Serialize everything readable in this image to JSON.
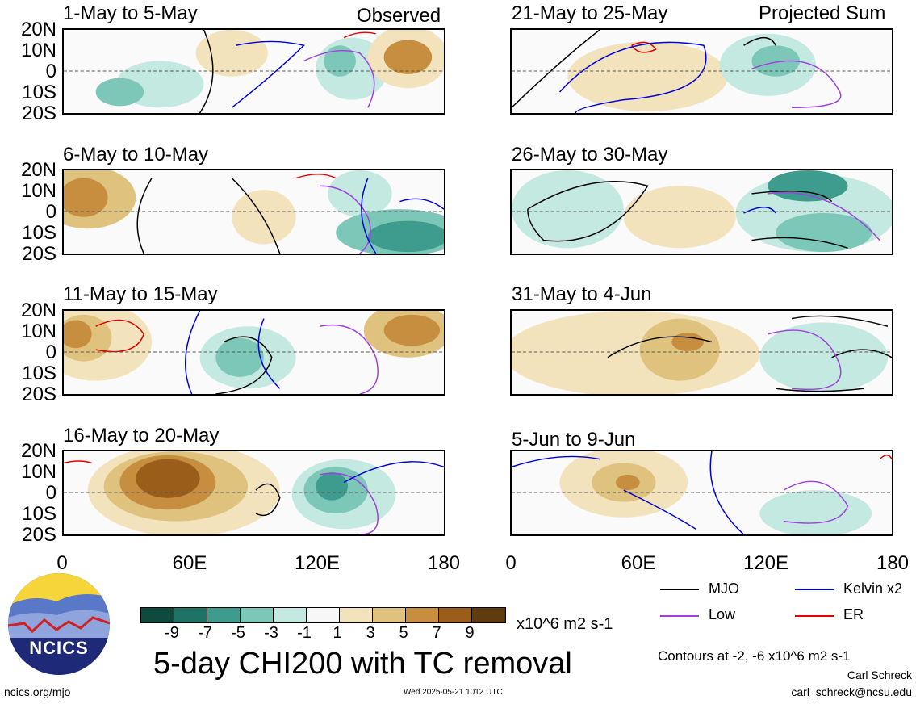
{
  "map": {
    "left_header": "Observed",
    "right_header": "Projected Sum",
    "lat_labels": [
      "20N",
      "10N",
      "0",
      "10S",
      "20S"
    ],
    "lon_labels": [
      "0",
      "60E",
      "120E",
      "180"
    ],
    "panels_left": [
      "1-May to 5-May",
      "6-May to 10-May",
      "11-May to 15-May",
      "16-May to 20-May"
    ],
    "panels_right": [
      "21-May to 25-May",
      "26-May to 30-May",
      "31-May to 4-Jun",
      "5-Jun to 9-Jun"
    ]
  },
  "colorbar": {
    "colors": [
      "#0e4a3e",
      "#1d7466",
      "#3d9c8e",
      "#7cc7b8",
      "#c4e9e0",
      "#f7f7f7",
      "#f3e3bd",
      "#dfc27d",
      "#c78e3f",
      "#9a5e1a",
      "#5e3c0e"
    ],
    "ticks": [
      "-9",
      "-7",
      "-5",
      "-3",
      "-1",
      "1",
      "3",
      "5",
      "7",
      "9"
    ],
    "units": "x10^6 m2 s-1"
  },
  "legend": [
    {
      "label": "MJO",
      "color": "#000000"
    },
    {
      "label": "Kelvin x2",
      "color": "#0000dd"
    },
    {
      "label": "Low",
      "color": "#a040e0"
    },
    {
      "label": "ER",
      "color": "#e00000"
    }
  ],
  "logo_text": "NCICS",
  "main_title": "5-day CHI200 with TC removal",
  "contour_note": "Contours at -2, -6 x10^6 m2 s-1",
  "author": "Carl Schreck",
  "email": "carl_schreck@ncsu.edu",
  "url": "ncics.org/mjo",
  "timestamp": "Wed 2025-05-21 1012 UTC"
}
